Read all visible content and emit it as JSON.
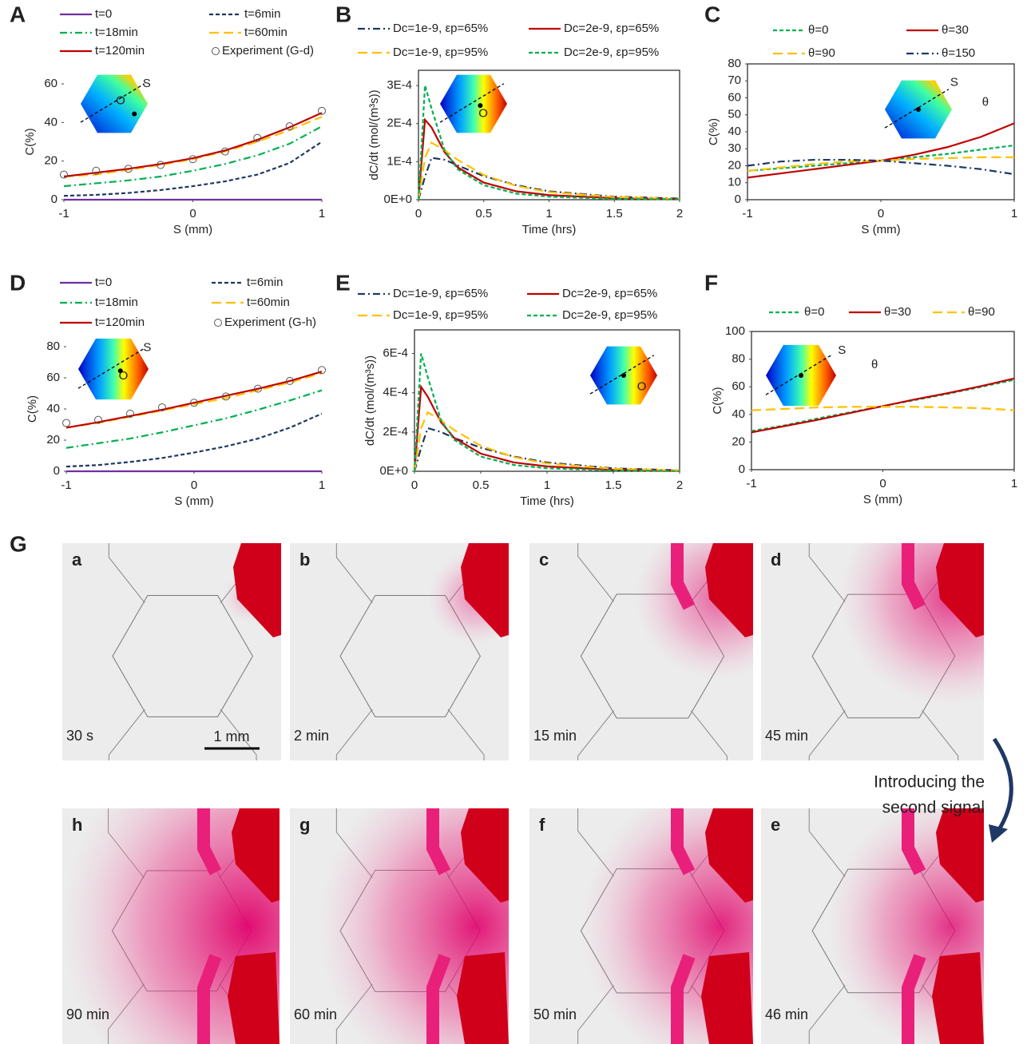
{
  "chart_data": [
    {
      "type": "line",
      "panel": "A",
      "xlabel": "S (mm)",
      "ylabel": "C(%)",
      "inset_labels": [
        "S",
        "O"
      ],
      "x": [
        -1,
        -0.75,
        -0.5,
        -0.25,
        0,
        0.25,
        0.5,
        0.75,
        1
      ],
      "xlim": [
        -1,
        1
      ],
      "xticks": [
        -1,
        0,
        1
      ],
      "ylim": [
        0,
        60
      ],
      "yticks": [
        0,
        20,
        40,
        60
      ],
      "frame": false,
      "series": [
        {
          "name": "t=0",
          "color": "#7030a0",
          "dash": "solid",
          "values": [
            0,
            0,
            0,
            0,
            0,
            0,
            0,
            0,
            0
          ]
        },
        {
          "name": "t=6min",
          "color": "#1f3864",
          "dash": "dashed",
          "values": [
            2,
            2.5,
            3.5,
            5,
            7,
            9.5,
            13,
            19,
            30
          ]
        },
        {
          "name": "t=18min",
          "color": "#00b050",
          "dash": "dashdot",
          "values": [
            7,
            8.5,
            10,
            12,
            15,
            18.5,
            23,
            29,
            38
          ]
        },
        {
          "name": "t=60min",
          "color": "#ffc000",
          "dash": "longdash",
          "values": [
            12,
            13,
            15.5,
            18,
            21,
            25,
            30,
            36,
            43
          ]
        },
        {
          "name": "t=120min",
          "color": "#c00000",
          "dash": "solid",
          "values": [
            12,
            14,
            16,
            18.5,
            21.5,
            25.5,
            31,
            37.5,
            45
          ]
        },
        {
          "name": "Experiment (G-d)",
          "color": "#555555",
          "dash": "markers",
          "values": [
            13,
            15,
            16,
            18,
            21,
            25,
            32,
            38,
            46
          ]
        }
      ]
    },
    {
      "type": "line",
      "panel": "B",
      "xlabel": "Time (hrs)",
      "ylabel": "dC/dt (mol/(m³s))",
      "inset_labels": [
        "O"
      ],
      "x": [
        0,
        0.05,
        0.1,
        0.2,
        0.3,
        0.5,
        0.75,
        1,
        1.5,
        2
      ],
      "xlim": [
        0,
        2
      ],
      "xticks": [
        0,
        0.5,
        1,
        1.5,
        2
      ],
      "ylim": [
        0,
        0.00034
      ],
      "yticks": [
        {
          "value": 0,
          "label": "0E+0"
        },
        {
          "value": 0.0001,
          "label": "1E-4"
        },
        {
          "value": 0.0002,
          "label": "2E-4"
        },
        {
          "value": 0.0003,
          "label": "3E-4"
        }
      ],
      "frame": true,
      "series": [
        {
          "name": "Dc=1e-9, εp=65%",
          "color": "#1f3864",
          "dash": "dashdot",
          "values": [
            0,
            6e-05,
            0.00011,
            0.000105,
            9e-05,
            6.2e-05,
            3.8e-05,
            2.2e-05,
            8e-06,
            3e-06
          ]
        },
        {
          "name": "Dc=2e-9, εp=65%",
          "color": "#c00000",
          "dash": "solid",
          "values": [
            0,
            0.00021,
            0.00019,
            0.000125,
            8.5e-05,
            4.5e-05,
            2.2e-05,
            1.2e-05,
            4e-06,
            1e-06
          ]
        },
        {
          "name": "Dc=1e-9, εp=95%",
          "color": "#ffc000",
          "dash": "longdash",
          "values": [
            0,
            0.00011,
            0.00015,
            0.00013,
            0.000105,
            6.5e-05,
            3.6e-05,
            2e-05,
            7e-06,
            2e-06
          ]
        },
        {
          "name": "Dc=2e-9, εp=95%",
          "color": "#00b050",
          "dash": "dashed",
          "values": [
            0,
            0.0003,
            0.00024,
            0.00013,
            8e-05,
            3.8e-05,
            1.6e-05,
            8e-06,
            2e-06,
            1e-06
          ]
        }
      ]
    },
    {
      "type": "line",
      "panel": "C",
      "xlabel": "S (mm)",
      "ylabel": "C(%)",
      "inset_labels": [
        "S",
        "θ"
      ],
      "x": [
        -1,
        -0.75,
        -0.5,
        -0.25,
        0,
        0.25,
        0.5,
        0.75,
        1
      ],
      "xlim": [
        -1,
        1
      ],
      "xticks": [
        -1,
        0,
        1
      ],
      "ylim": [
        0,
        80
      ],
      "yticks": [
        0,
        10,
        20,
        30,
        40,
        50,
        60,
        70,
        80
      ],
      "frame": true,
      "series": [
        {
          "name": "θ=0",
          "color": "#00b050",
          "dash": "dashed",
          "values": [
            17,
            18.5,
            20,
            21.5,
            23,
            25,
            27,
            29.5,
            32
          ]
        },
        {
          "name": "θ=30",
          "color": "#c00000",
          "dash": "solid",
          "values": [
            13,
            15.5,
            18,
            20.5,
            23,
            26.5,
            31,
            37,
            45
          ]
        },
        {
          "name": "θ=90",
          "color": "#ffc000",
          "dash": "longdash",
          "values": [
            17,
            19,
            21,
            22.5,
            23,
            24,
            24.5,
            25,
            25
          ]
        },
        {
          "name": "θ=150",
          "color": "#1f3864",
          "dash": "dashdot",
          "values": [
            20,
            22.5,
            23.5,
            23.5,
            23,
            21.5,
            20,
            18,
            15
          ]
        }
      ]
    },
    {
      "type": "line",
      "panel": "D",
      "xlabel": "S (mm)",
      "ylabel": "C(%)",
      "inset_labels": [
        "S",
        "O"
      ],
      "x": [
        -1,
        -0.75,
        -0.5,
        -0.25,
        0,
        0.25,
        0.5,
        0.75,
        1
      ],
      "xlim": [
        -1,
        1
      ],
      "xticks": [
        -1,
        0,
        1
      ],
      "ylim": [
        0,
        80
      ],
      "yticks": [
        0,
        20,
        40,
        60,
        80
      ],
      "frame": false,
      "series": [
        {
          "name": "t=0",
          "color": "#7030a0",
          "dash": "solid",
          "values": [
            0,
            0,
            0,
            0,
            0,
            0,
            0,
            0,
            0
          ]
        },
        {
          "name": "t=6min",
          "color": "#1f3864",
          "dash": "dashed",
          "values": [
            3,
            4,
            6,
            8.5,
            12,
            16,
            21,
            28,
            37
          ]
        },
        {
          "name": "t=18min",
          "color": "#00b050",
          "dash": "dashdot",
          "values": [
            15,
            18,
            21,
            25,
            29.5,
            34,
            39.5,
            45.5,
            52
          ]
        },
        {
          "name": "t=60min",
          "color": "#ffc000",
          "dash": "longdash",
          "values": [
            28,
            31,
            35,
            39,
            43,
            47,
            52,
            57,
            63
          ]
        },
        {
          "name": "t=120min",
          "color": "#c00000",
          "dash": "solid",
          "values": [
            28,
            31.5,
            35.5,
            39.5,
            44,
            48.5,
            53,
            58,
            64
          ]
        },
        {
          "name": "Experiment (G-h)",
          "color": "#555555",
          "dash": "markers",
          "values": [
            31,
            33,
            37,
            41,
            44,
            48,
            53,
            58,
            65
          ]
        }
      ]
    },
    {
      "type": "line",
      "panel": "E",
      "xlabel": "Time (hrs)",
      "ylabel": "dC/dt (mol/(m³s))",
      "inset_labels": [
        "O"
      ],
      "x": [
        0,
        0.05,
        0.1,
        0.2,
        0.3,
        0.5,
        0.75,
        1,
        1.5,
        2
      ],
      "xlim": [
        0,
        2
      ],
      "xticks": [
        0,
        0.5,
        1,
        1.5,
        2
      ],
      "ylim": [
        0,
        0.00072
      ],
      "yticks": [
        {
          "value": 0,
          "label": "0E+0"
        },
        {
          "value": 0.0002,
          "label": "2E-4"
        },
        {
          "value": 0.0004,
          "label": "4E-4"
        },
        {
          "value": 0.0006,
          "label": "6E-4"
        }
      ],
      "frame": true,
      "series": [
        {
          "name": "Dc=1e-9, εp=65%",
          "color": "#1f3864",
          "dash": "dashdot",
          "values": [
            0,
            0.00012,
            0.00022,
            0.0002,
            0.00017,
            0.00012,
            7.5e-05,
            4.5e-05,
            1.5e-05,
            5e-06
          ]
        },
        {
          "name": "Dc=2e-9, εp=65%",
          "color": "#c00000",
          "dash": "solid",
          "values": [
            0,
            0.00043,
            0.00038,
            0.00025,
            0.00017,
            9e-05,
            4.5e-05,
            2.5e-05,
            7e-06,
            2e-06
          ]
        },
        {
          "name": "Dc=1e-9, εp=95%",
          "color": "#ffc000",
          "dash": "longdash",
          "values": [
            0,
            0.00022,
            0.0003,
            0.00026,
            0.00021,
            0.00013,
            7.2e-05,
            4e-05,
            1.3e-05,
            4e-06
          ]
        },
        {
          "name": "Dc=2e-9, εp=95%",
          "color": "#00b050",
          "dash": "dashed",
          "values": [
            0,
            0.0006,
            0.00048,
            0.00026,
            0.00016,
            7.5e-05,
            3.2e-05,
            1.5e-05,
            4e-06,
            1e-06
          ]
        }
      ]
    },
    {
      "type": "line",
      "panel": "F",
      "xlabel": "S (mm)",
      "ylabel": "C(%)",
      "inset_labels": [
        "S",
        "θ"
      ],
      "x": [
        -1,
        -0.75,
        -0.5,
        -0.25,
        0,
        0.25,
        0.5,
        0.75,
        1
      ],
      "xlim": [
        -1,
        1
      ],
      "xticks": [
        -1,
        0,
        1
      ],
      "ylim": [
        0,
        100
      ],
      "yticks": [
        0,
        20,
        40,
        60,
        80,
        100
      ],
      "frame": true,
      "series": [
        {
          "name": "θ=0",
          "color": "#00b050",
          "dash": "dashed",
          "values": [
            28,
            32,
            37,
            41.5,
            46,
            50.5,
            55,
            60,
            65
          ]
        },
        {
          "name": "θ=30",
          "color": "#c00000",
          "dash": "solid",
          "values": [
            27,
            31.5,
            36,
            41,
            46,
            51,
            55.5,
            60.5,
            66
          ]
        },
        {
          "name": "θ=90",
          "color": "#ffc000",
          "dash": "longdash",
          "values": [
            43,
            44,
            45,
            45.5,
            45.5,
            45.5,
            45,
            44.5,
            43
          ]
        }
      ]
    }
  ],
  "photos": {
    "panel": "G",
    "scale_bar": "1 mm",
    "annotation": [
      "Introducing the",
      "second signal"
    ],
    "frames": [
      {
        "label": "a",
        "time": "30 s"
      },
      {
        "label": "b",
        "time": "2 min"
      },
      {
        "label": "c",
        "time": "15 min"
      },
      {
        "label": "d",
        "time": "45 min"
      },
      {
        "label": "h",
        "time": "90 min"
      },
      {
        "label": "g",
        "time": "60 min"
      },
      {
        "label": "f",
        "time": "50 min"
      },
      {
        "label": "e",
        "time": "46 min"
      }
    ]
  }
}
